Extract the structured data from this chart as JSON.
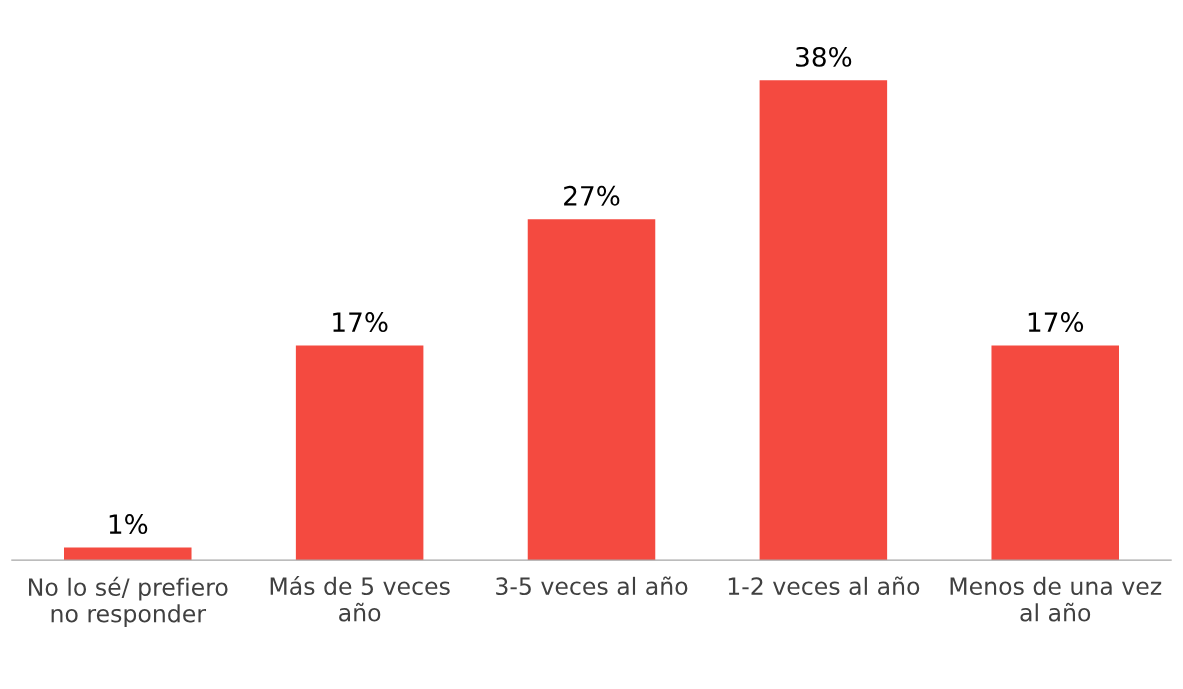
{
  "chart_data": {
    "type": "bar",
    "categories": [
      "No lo sé/ prefiero\nno responder",
      "Más de 5 veces\naño",
      "3-5 veces al año",
      "1-2 veces al año",
      "Menos de una vez\nal año"
    ],
    "values": [
      1,
      17,
      27,
      38,
      17
    ],
    "value_labels": [
      "1%",
      "17%",
      "27%",
      "38%",
      "17%"
    ],
    "color": "#f44a40"
  }
}
